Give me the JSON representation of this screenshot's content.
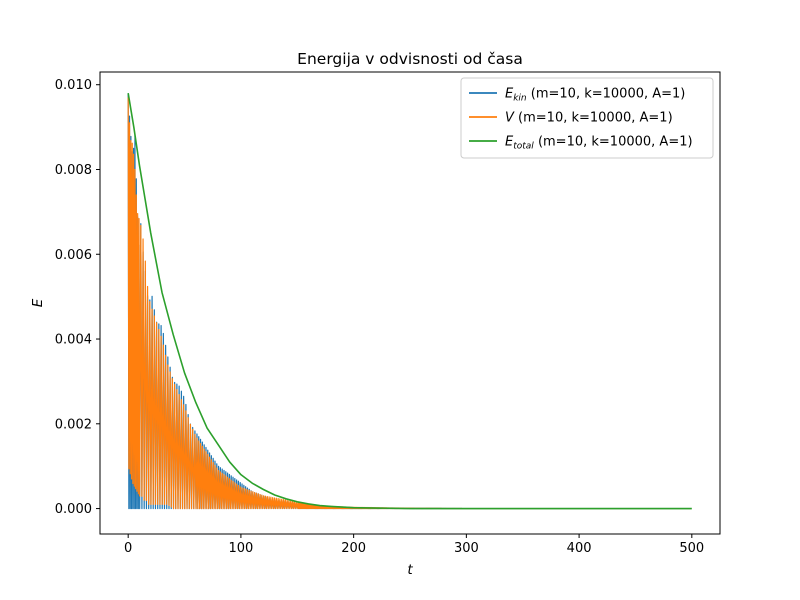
{
  "chart_data": {
    "type": "line",
    "title": "Energija v odvisnosti od časa",
    "xlabel": "t",
    "ylabel": "E",
    "xlim": [
      -25,
      525
    ],
    "ylim": [
      -0.0006,
      0.0103
    ],
    "xticks": [
      0,
      100,
      200,
      300,
      400,
      500
    ],
    "xtick_labels": [
      "0",
      "100",
      "200",
      "300",
      "400",
      "500"
    ],
    "yticks": [
      0.0,
      0.002,
      0.004,
      0.006,
      0.008,
      0.01
    ],
    "ytick_labels": [
      "0.000",
      "0.002",
      "0.004",
      "0.006",
      "0.008",
      "0.010"
    ],
    "grid": false,
    "legend_position": "top-right",
    "series": [
      {
        "name": "E_kin (m=10, k=10000, A=1)",
        "legend_main": "E",
        "legend_sub": "kin",
        "legend_rest": " (m=10, k=10000, A=1)",
        "color": "#1f77b4",
        "style": "oscillating",
        "x": [
          0,
          2,
          4,
          6,
          8,
          10,
          12,
          14,
          16,
          18,
          20,
          25,
          30,
          35,
          40,
          45,
          50,
          55,
          60,
          65,
          70,
          80,
          90,
          100,
          110,
          120,
          130,
          140,
          150,
          160,
          170,
          180,
          190,
          200,
          250,
          300,
          350,
          400,
          450,
          500
        ],
        "y_max": [
          0.0098,
          0.0089,
          0.0083,
          0.0088,
          0.0071,
          0.006,
          0.0072,
          0.0053,
          0.0058,
          0.0045,
          0.0052,
          0.0044,
          0.0043,
          0.0036,
          0.003,
          0.0029,
          0.0026,
          0.002,
          0.0018,
          0.0016,
          0.0014,
          0.001,
          0.0008,
          0.0006,
          0.0004,
          0.0003,
          0.0002,
          0.00018,
          0.00012,
          8e-05,
          5e-05,
          4e-05,
          3e-05,
          2e-05,
          1e-05,
          0.0,
          0.0,
          0.0,
          0.0,
          0.0
        ],
        "y_min": [
          0.0,
          0.0,
          0.0,
          0.0,
          0.0,
          0.0,
          0.0,
          0.0,
          0.0,
          0.0,
          0.0,
          0.0,
          0.0,
          0.0,
          0.0,
          0.0,
          0.0,
          0.0,
          0.0,
          0.0,
          0.0,
          0.0,
          0.0,
          0.0,
          0.0,
          0.0,
          0.0,
          0.0,
          0.0,
          0.0,
          0.0,
          0.0,
          0.0,
          0.0,
          0.0,
          0.0,
          0.0,
          0.0,
          0.0,
          0.0
        ]
      },
      {
        "name": "V (m=10, k=10000, A=1)",
        "legend_main": "V",
        "legend_sub": "",
        "legend_rest": " (m=10, k=10000, A=1)",
        "color": "#ff7f0e",
        "style": "oscillating",
        "x": [
          0,
          2,
          4,
          6,
          8,
          10,
          12,
          14,
          16,
          18,
          20,
          25,
          30,
          35,
          40,
          45,
          50,
          55,
          60,
          65,
          70,
          80,
          90,
          100,
          110,
          120,
          130,
          140,
          150,
          160,
          170,
          180,
          190,
          200,
          250,
          300,
          350,
          400,
          450,
          500
        ],
        "y_max": [
          0.0097,
          0.0087,
          0.0086,
          0.008,
          0.007,
          0.0068,
          0.0066,
          0.0062,
          0.0056,
          0.005,
          0.0048,
          0.0044,
          0.004,
          0.0034,
          0.003,
          0.0027,
          0.0024,
          0.002,
          0.0017,
          0.0015,
          0.0013,
          0.0009,
          0.0007,
          0.0005,
          0.0004,
          0.0003,
          0.00025,
          0.0002,
          0.00015,
          0.0001,
          7e-05,
          5e-05,
          4e-05,
          3e-05,
          1e-05,
          0.0,
          0.0,
          0.0,
          0.0,
          0.0
        ],
        "y_min": [
          0.001,
          0.0008,
          0.0006,
          0.0005,
          0.0004,
          0.0003,
          0.0003,
          0.0002,
          0.0002,
          0.0001,
          0.0001,
          0.0001,
          0.0001,
          0.0001,
          0.0,
          0.0,
          0.0,
          0.0,
          0.0,
          0.0,
          0.0,
          0.0,
          0.0,
          0.0,
          0.0,
          0.0,
          0.0,
          0.0,
          0.0,
          0.0,
          0.0,
          0.0,
          0.0,
          0.0,
          0.0,
          0.0,
          0.0,
          0.0,
          0.0,
          0.0
        ]
      },
      {
        "name": "E_total (m=10, k=10000, A=1)",
        "legend_main": "E",
        "legend_sub": "total",
        "legend_rest": " (m=10, k=10000, A=1)",
        "color": "#2ca02c",
        "style": "line",
        "x": [
          0,
          5,
          10,
          15,
          20,
          25,
          30,
          40,
          50,
          60,
          70,
          80,
          90,
          100,
          110,
          120,
          130,
          140,
          150,
          160,
          170,
          180,
          200,
          250,
          300,
          350,
          400,
          450,
          500
        ],
        "y": [
          0.0098,
          0.009,
          0.0081,
          0.0073,
          0.0065,
          0.0058,
          0.0051,
          0.0041,
          0.0032,
          0.0025,
          0.0019,
          0.0015,
          0.0011,
          0.0008,
          0.0006,
          0.00045,
          0.00032,
          0.00023,
          0.00016,
          0.00011,
          7e-05,
          5e-05,
          2e-05,
          0.0,
          0.0,
          0.0,
          0.0,
          0.0,
          0.0
        ]
      }
    ]
  },
  "colors": {
    "axes": "#000000",
    "background": "#ffffff"
  }
}
